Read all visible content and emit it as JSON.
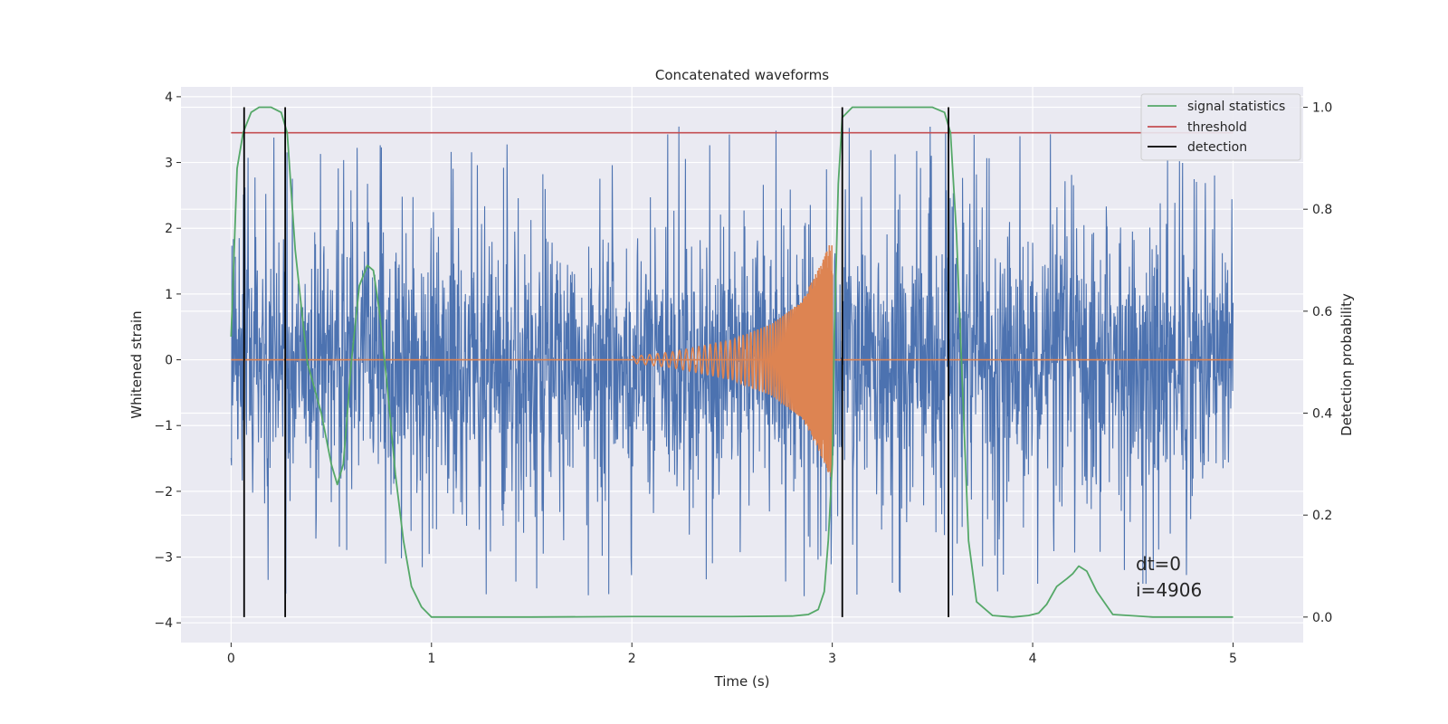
{
  "chart_data": {
    "type": "line",
    "title": "Concatenated waveforms",
    "xlabel": "Time (s)",
    "ylabel": "Whitened strain",
    "ylabel_right": "Detection probability",
    "xlim": [
      -0.25,
      5.35
    ],
    "ylim": [
      -4.3,
      4.15
    ],
    "ylim_right": [
      -0.05,
      1.04
    ],
    "xticks": [
      0,
      1,
      2,
      3,
      4,
      5
    ],
    "yticks": [
      -4,
      -3,
      -2,
      -1,
      0,
      1,
      2,
      3,
      4
    ],
    "yticks_right": [
      0.0,
      0.2,
      0.4,
      0.6,
      0.8,
      1.0
    ],
    "ytick_labels": [
      "−4",
      "−3",
      "−2",
      "−1",
      "0",
      "1",
      "2",
      "3",
      "4"
    ],
    "ytick_labels_right": [
      "0.0",
      "0.2",
      "0.4",
      "0.6",
      "0.8",
      "1.0"
    ],
    "grid": true,
    "legend_position": "top-right",
    "legend": [
      "signal statistics",
      "threshold",
      "detection"
    ],
    "colors": {
      "strain": "#4c72b0",
      "waveform": "#dd8452",
      "signal_statistics": "#55a868",
      "threshold": "#c44e52",
      "detection": "#000000",
      "background": "#eaeaf2",
      "grid": "#ffffff"
    },
    "strain": {
      "x_range": [
        0,
        5
      ],
      "amplitude_typical": 1.5,
      "amplitude_peak": 3.8,
      "min": -3.9,
      "max": 3.8
    },
    "waveform": {
      "name": "",
      "x_start": 2.0,
      "x_end": 3.0,
      "peak_amplitude": 1.85,
      "description_points": [
        [
          2.0,
          0.05
        ],
        [
          2.2,
          0.12
        ],
        [
          2.5,
          0.3
        ],
        [
          2.7,
          0.55
        ],
        [
          2.85,
          0.9
        ],
        [
          2.95,
          1.5
        ],
        [
          3.0,
          1.85
        ]
      ]
    },
    "signal_statistics": {
      "name": "signal statistics",
      "x": [
        0.0,
        0.03,
        0.06,
        0.1,
        0.14,
        0.2,
        0.25,
        0.28,
        0.32,
        0.38,
        0.45,
        0.5,
        0.53,
        0.56,
        0.6,
        0.64,
        0.68,
        0.71,
        0.74,
        0.78,
        0.82,
        0.86,
        0.9,
        0.95,
        1.0,
        1.5,
        2.0,
        2.5,
        2.8,
        2.88,
        2.93,
        2.96,
        2.98,
        3.0,
        3.01,
        3.03,
        3.05,
        3.1,
        3.3,
        3.5,
        3.56,
        3.59,
        3.62,
        3.65,
        3.68,
        3.72,
        3.8,
        3.9,
        3.98,
        4.03,
        4.07,
        4.12,
        4.17,
        4.2,
        4.23,
        4.27,
        4.32,
        4.4,
        4.6,
        5.0
      ],
      "y": [
        0.55,
        0.88,
        0.95,
        0.99,
        1.0,
        1.0,
        0.99,
        0.95,
        0.72,
        0.5,
        0.4,
        0.3,
        0.26,
        0.3,
        0.5,
        0.65,
        0.69,
        0.68,
        0.6,
        0.45,
        0.28,
        0.15,
        0.06,
        0.02,
        0.0,
        0.0,
        0.001,
        0.001,
        0.002,
        0.005,
        0.015,
        0.05,
        0.15,
        0.3,
        0.55,
        0.85,
        0.98,
        1.0,
        1.0,
        1.0,
        0.99,
        0.95,
        0.75,
        0.45,
        0.15,
        0.03,
        0.003,
        0.0,
        0.003,
        0.008,
        0.025,
        0.06,
        0.075,
        0.085,
        0.1,
        0.09,
        0.05,
        0.005,
        0.0,
        0.0
      ]
    },
    "threshold": {
      "name": "threshold",
      "value": 0.95,
      "x_range": [
        0,
        5
      ]
    },
    "detection": {
      "name": "detection",
      "x": [
        0.065,
        0.27,
        3.05,
        3.58
      ],
      "y_range": [
        0.0,
        1.0
      ]
    },
    "horizontal_lines_right": [
      0.4,
      0.6
    ],
    "zero_line": 0
  },
  "annotation": {
    "dt": "dt=0",
    "i": "i=4906"
  }
}
